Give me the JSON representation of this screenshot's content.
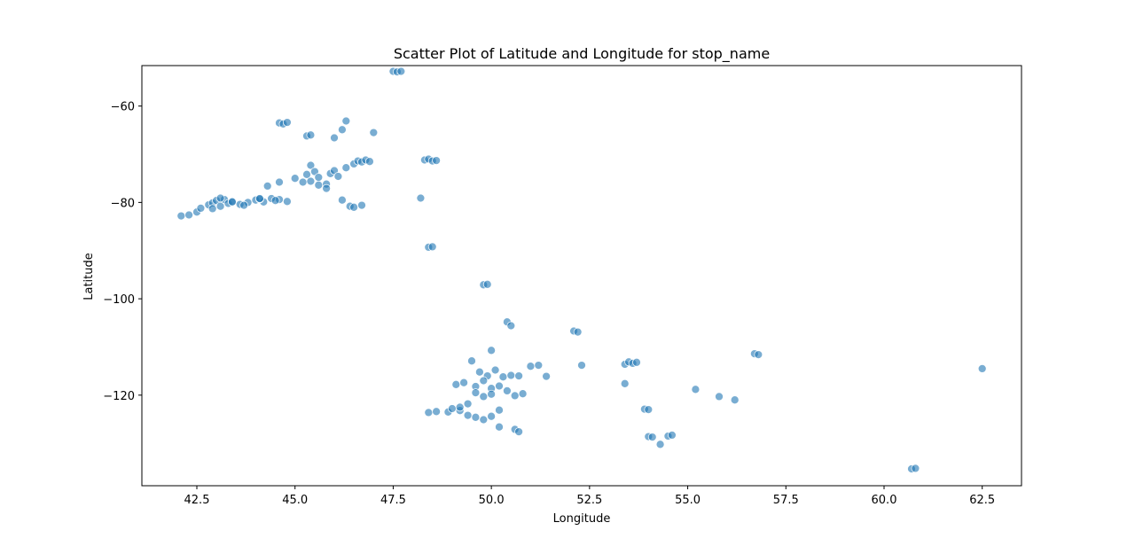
{
  "chart_data": {
    "type": "scatter",
    "title": "Scatter Plot of Latitude and Longitude for stop_name",
    "xlabel": "Longitude",
    "ylabel": "Latitude",
    "xlim": [
      41.1,
      63.5
    ],
    "ylim": [
      -138.8,
      -51.6
    ],
    "xticks": [
      42.5,
      45.0,
      47.5,
      50.0,
      52.5,
      55.0,
      57.5,
      60.0,
      62.5
    ],
    "xtick_labels": [
      "42.5",
      "45.0",
      "47.5",
      "50.0",
      "52.5",
      "55.0",
      "57.5",
      "60.0",
      "62.5"
    ],
    "yticks": [
      -60,
      -80,
      -100,
      -120
    ],
    "ytick_labels": [
      "−60",
      "−80",
      "−100",
      "−120"
    ],
    "grid": false,
    "marker_color": "#1f77b4",
    "series": [
      {
        "x": [
          42.1,
          42.3,
          42.5,
          42.6,
          42.8,
          42.9,
          43.0,
          43.1,
          43.2,
          43.3,
          43.4,
          43.6,
          43.8,
          44.0,
          44.2,
          44.4,
          44.6,
          44.8,
          42.9,
          43.1,
          43.4,
          43.7,
          44.1,
          44.5,
          44.6,
          44.7,
          44.8,
          45.3,
          45.4,
          46.0,
          46.2,
          46.3,
          47.0,
          45.0,
          45.2,
          45.3,
          45.4,
          45.5,
          45.6,
          45.8,
          45.9,
          46.0,
          46.1,
          46.3,
          46.5,
          46.6,
          46.7,
          46.8,
          46.9,
          45.4,
          45.6,
          45.8,
          46.2,
          46.4,
          46.5,
          46.7,
          44.3,
          44.6,
          44.1,
          47.5,
          47.6,
          47.7,
          48.3,
          48.4,
          48.5,
          48.6,
          48.2,
          48.4,
          48.5,
          49.8,
          49.9,
          50.4,
          50.5,
          50.0,
          52.1,
          52.2,
          52.3,
          49.5,
          49.7,
          49.9,
          50.1,
          50.3,
          50.5,
          50.7,
          51.0,
          51.2,
          51.4,
          49.1,
          49.3,
          49.6,
          49.8,
          50.0,
          50.2,
          50.4,
          50.6,
          50.8,
          48.4,
          48.6,
          48.9,
          49.0,
          49.2,
          49.4,
          49.6,
          49.8,
          50.0,
          50.2,
          49.2,
          49.4,
          49.6,
          49.8,
          50.0,
          50.2,
          50.6,
          50.7,
          53.4,
          53.5,
          53.6,
          53.7,
          53.4,
          53.9,
          54.0,
          54.0,
          54.1,
          54.3,
          54.5,
          54.6,
          55.2,
          55.8,
          56.2,
          56.7,
          56.8,
          60.7,
          60.8,
          62.5
        ],
        "y": [
          -82.8,
          -82.6,
          -82.0,
          -81.2,
          -80.5,
          -80.1,
          -79.6,
          -80.8,
          -79.4,
          -80.2,
          -79.8,
          -80.4,
          -80.0,
          -79.5,
          -79.9,
          -79.2,
          -79.4,
          -79.8,
          -81.3,
          -79.1,
          -79.9,
          -80.6,
          -79.3,
          -79.6,
          -63.5,
          -63.7,
          -63.4,
          -66.2,
          -66.0,
          -66.6,
          -64.9,
          -63.1,
          -65.5,
          -75.0,
          -75.8,
          -74.2,
          -72.3,
          -73.6,
          -74.8,
          -76.2,
          -74.0,
          -73.4,
          -74.6,
          -72.8,
          -72.0,
          -71.4,
          -71.6,
          -71.2,
          -71.5,
          -75.6,
          -76.4,
          -77.1,
          -79.5,
          -80.8,
          -81.0,
          -80.6,
          -76.6,
          -75.8,
          -79.2,
          -52.8,
          -52.9,
          -52.8,
          -71.2,
          -71.0,
          -71.4,
          -71.3,
          -79.1,
          -89.3,
          -89.2,
          -97.1,
          -97.0,
          -104.8,
          -105.6,
          -110.7,
          -106.7,
          -106.9,
          -113.8,
          -112.9,
          -115.2,
          -116.0,
          -114.8,
          -116.2,
          -115.9,
          -116.0,
          -114.0,
          -113.8,
          -116.1,
          -117.8,
          -117.4,
          -118.2,
          -117.0,
          -118.6,
          -118.1,
          -119.1,
          -120.1,
          -119.7,
          -123.6,
          -123.4,
          -123.5,
          -122.8,
          -123.2,
          -124.2,
          -124.6,
          -125.1,
          -124.4,
          -123.1,
          -122.5,
          -121.8,
          -119.5,
          -120.3,
          -119.8,
          -126.6,
          -127.1,
          -127.6,
          -113.6,
          -113.1,
          -113.4,
          -113.2,
          -117.6,
          -122.9,
          -123.0,
          -128.6,
          -128.7,
          -130.2,
          -128.5,
          -128.3,
          -118.8,
          -120.3,
          -121.0,
          -111.4,
          -111.6,
          -135.3,
          -135.2,
          -114.5
        ]
      }
    ]
  }
}
